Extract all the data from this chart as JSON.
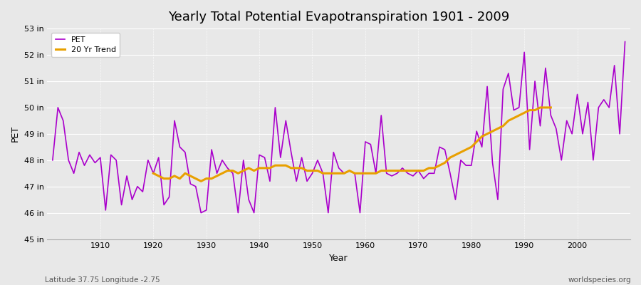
{
  "title": "Yearly Total Potential Evapotranspiration 1901 - 2009",
  "xlabel": "Year",
  "ylabel": "PET",
  "latitude": "Latitude 37.75 Longitude -2.75",
  "watermark": "worldspecies.org",
  "pet_color": "#aa00cc",
  "trend_color": "#e8a000",
  "background_color": "#e8e8e8",
  "plot_bg_color": "#e8e8e8",
  "ylim": [
    45,
    53
  ],
  "ytick_labels": [
    "45 in",
    "46 in",
    "47 in",
    "48 in",
    "49 in",
    "50 in",
    "51 in",
    "52 in",
    "53 in"
  ],
  "years": [
    1901,
    1902,
    1903,
    1904,
    1905,
    1906,
    1907,
    1908,
    1909,
    1910,
    1911,
    1912,
    1913,
    1914,
    1915,
    1916,
    1917,
    1918,
    1919,
    1920,
    1921,
    1922,
    1923,
    1924,
    1925,
    1926,
    1927,
    1928,
    1929,
    1930,
    1931,
    1932,
    1933,
    1934,
    1935,
    1936,
    1937,
    1938,
    1939,
    1940,
    1941,
    1942,
    1943,
    1944,
    1945,
    1946,
    1947,
    1948,
    1949,
    1950,
    1951,
    1952,
    1953,
    1954,
    1955,
    1956,
    1957,
    1958,
    1959,
    1960,
    1961,
    1962,
    1963,
    1964,
    1965,
    1966,
    1967,
    1968,
    1969,
    1970,
    1971,
    1972,
    1973,
    1974,
    1975,
    1976,
    1977,
    1978,
    1979,
    1980,
    1981,
    1982,
    1983,
    1984,
    1985,
    1986,
    1987,
    1988,
    1989,
    1990,
    1991,
    1992,
    1993,
    1994,
    1995,
    1996,
    1997,
    1998,
    1999,
    2000,
    2001,
    2002,
    2003,
    2004,
    2005,
    2006,
    2007,
    2008,
    2009
  ],
  "pet_values": [
    48.0,
    50.0,
    49.5,
    48.0,
    47.5,
    48.3,
    47.8,
    48.2,
    47.9,
    48.1,
    46.1,
    48.2,
    48.0,
    46.3,
    47.4,
    46.5,
    47.0,
    46.8,
    48.0,
    47.5,
    48.1,
    46.3,
    46.6,
    49.5,
    48.5,
    48.3,
    47.1,
    47.0,
    46.0,
    46.1,
    48.4,
    47.5,
    48.0,
    47.7,
    47.5,
    46.0,
    48.0,
    46.5,
    46.0,
    48.2,
    48.1,
    47.2,
    50.0,
    48.1,
    49.5,
    48.3,
    47.2,
    48.1,
    47.2,
    47.5,
    48.0,
    47.5,
    46.0,
    48.3,
    47.7,
    47.5,
    47.6,
    47.5,
    46.0,
    48.7,
    48.6,
    47.5,
    49.7,
    47.5,
    47.4,
    47.5,
    47.7,
    47.5,
    47.4,
    47.6,
    47.3,
    47.5,
    47.5,
    48.5,
    48.4,
    47.5,
    46.5,
    48.0,
    47.8,
    47.8,
    49.1,
    48.5,
    50.8,
    47.9,
    46.5,
    50.7,
    51.3,
    49.9,
    50.0,
    52.1,
    48.4,
    51.0,
    49.3,
    51.5,
    49.7,
    49.2,
    48.0,
    49.5,
    49.0,
    50.5,
    49.0,
    50.2,
    48.0,
    50.0,
    50.3,
    50.0,
    51.6,
    49.0,
    52.5
  ],
  "trend_years": [
    1920,
    1921,
    1922,
    1923,
    1924,
    1925,
    1926,
    1927,
    1928,
    1929,
    1930,
    1931,
    1932,
    1933,
    1934,
    1935,
    1936,
    1937,
    1938,
    1939,
    1940,
    1941,
    1942,
    1943,
    1944,
    1945,
    1946,
    1947,
    1948,
    1949,
    1950,
    1951,
    1952,
    1953,
    1954,
    1955,
    1956,
    1957,
    1958,
    1959,
    1960,
    1961,
    1962,
    1963,
    1964,
    1965,
    1966,
    1967,
    1968,
    1969,
    1970,
    1971,
    1972,
    1973,
    1974,
    1975,
    1976,
    1977,
    1978,
    1979,
    1980,
    1981,
    1982,
    1983,
    1984,
    1985,
    1986,
    1987,
    1988,
    1989,
    1990,
    1991,
    1992,
    1993,
    1994,
    1995
  ],
  "trend_values": [
    47.5,
    47.4,
    47.3,
    47.3,
    47.4,
    47.3,
    47.5,
    47.4,
    47.3,
    47.2,
    47.3,
    47.3,
    47.4,
    47.5,
    47.6,
    47.6,
    47.5,
    47.6,
    47.7,
    47.6,
    47.7,
    47.7,
    47.7,
    47.8,
    47.8,
    47.8,
    47.7,
    47.7,
    47.7,
    47.6,
    47.6,
    47.6,
    47.5,
    47.5,
    47.5,
    47.5,
    47.5,
    47.6,
    47.5,
    47.5,
    47.5,
    47.5,
    47.5,
    47.6,
    47.6,
    47.6,
    47.6,
    47.6,
    47.6,
    47.6,
    47.6,
    47.6,
    47.7,
    47.7,
    47.8,
    47.9,
    48.1,
    48.2,
    48.3,
    48.4,
    48.5,
    48.7,
    48.9,
    49.0,
    49.1,
    49.2,
    49.3,
    49.5,
    49.6,
    49.7,
    49.8,
    49.9,
    49.9,
    50.0,
    50.0,
    50.0
  ]
}
